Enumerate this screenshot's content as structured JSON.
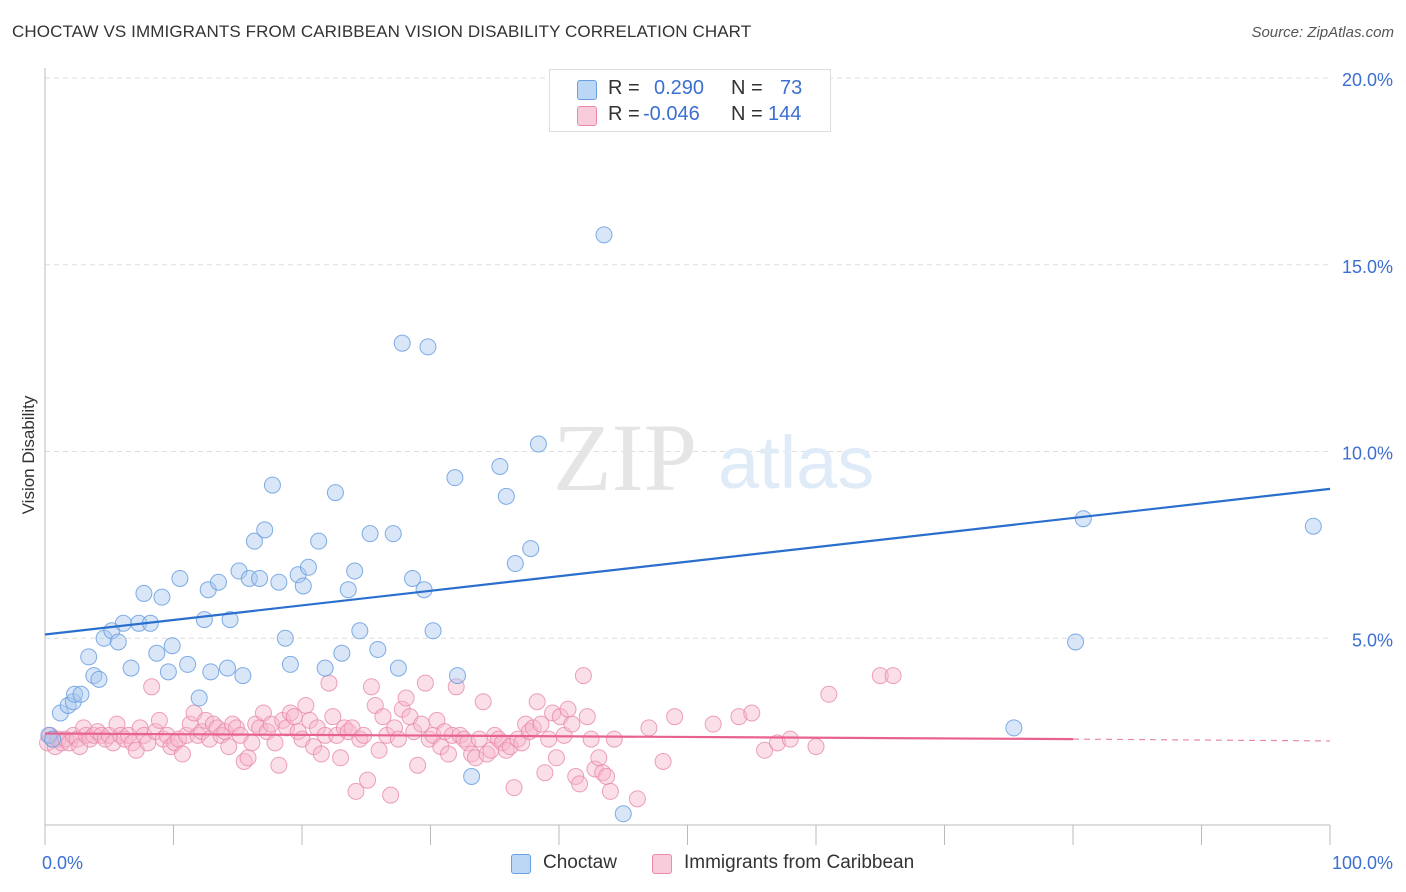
{
  "title": "CHOCTAW VS IMMIGRANTS FROM CARIBBEAN VISION DISABILITY CORRELATION CHART",
  "source": "Source: ZipAtlas.com",
  "watermark": {
    "zip": "ZIP",
    "atlas": "atlas"
  },
  "legend": {
    "r_label": "R =",
    "n_label": "N =",
    "rows": [
      {
        "name": "Choctaw",
        "r": "0.290",
        "n": "73"
      },
      {
        "name": "Immigrants from Caribbean",
        "r": "-0.046",
        "n": "144"
      }
    ]
  },
  "colors": {
    "blue_fill": "#a9c8f0",
    "blue_stroke": "#6a9fe0",
    "blue_line": "#2b6fce",
    "pink_fill": "#f6b8cd",
    "pink_stroke": "#e98aab",
    "pink_line": "#e8628f",
    "tick_label": "#3b6fd1",
    "grid": "#dddddd"
  },
  "chart_data": {
    "type": "scatter",
    "title": "CHOCTAW VS IMMIGRANTS FROM CARIBBEAN VISION DISABILITY CORRELATION CHART",
    "xlabel": "",
    "ylabel": "Vision Disability",
    "xlim": [
      0,
      100
    ],
    "ylim": [
      0,
      20
    ],
    "x_tick_labels": [
      "0.0%",
      "100.0%"
    ],
    "y_ticks": [
      5,
      10,
      15,
      20
    ],
    "y_tick_labels": [
      "5.0%",
      "10.0%",
      "15.0%",
      "20.0%"
    ],
    "series": [
      {
        "name": "Choctaw",
        "r": 0.29,
        "n": 73,
        "trend": {
          "x": [
            0,
            100
          ],
          "y": [
            5.1,
            9.0
          ]
        },
        "points": [
          [
            0.3,
            2.4
          ],
          [
            0.6,
            2.3
          ],
          [
            1.2,
            3.0
          ],
          [
            1.8,
            3.2
          ],
          [
            2.2,
            3.3
          ],
          [
            2.3,
            3.5
          ],
          [
            2.8,
            3.5
          ],
          [
            3.4,
            4.5
          ],
          [
            3.8,
            4.0
          ],
          [
            4.2,
            3.9
          ],
          [
            4.6,
            5.0
          ],
          [
            5.2,
            5.2
          ],
          [
            5.7,
            4.9
          ],
          [
            6.1,
            5.4
          ],
          [
            6.7,
            4.2
          ],
          [
            7.3,
            5.4
          ],
          [
            7.7,
            6.2
          ],
          [
            8.2,
            5.4
          ],
          [
            8.7,
            4.6
          ],
          [
            9.1,
            6.1
          ],
          [
            9.6,
            4.1
          ],
          [
            9.9,
            4.8
          ],
          [
            10.5,
            6.6
          ],
          [
            11.1,
            4.3
          ],
          [
            12.0,
            3.4
          ],
          [
            12.4,
            5.5
          ],
          [
            12.7,
            6.3
          ],
          [
            12.9,
            4.1
          ],
          [
            13.5,
            6.5
          ],
          [
            14.2,
            4.2
          ],
          [
            14.4,
            5.5
          ],
          [
            15.1,
            6.8
          ],
          [
            15.4,
            4.0
          ],
          [
            15.9,
            6.6
          ],
          [
            16.3,
            7.6
          ],
          [
            16.7,
            6.6
          ],
          [
            17.1,
            7.9
          ],
          [
            17.7,
            9.1
          ],
          [
            18.2,
            6.5
          ],
          [
            18.7,
            5.0
          ],
          [
            19.1,
            4.3
          ],
          [
            19.7,
            6.7
          ],
          [
            20.1,
            6.4
          ],
          [
            20.5,
            6.9
          ],
          [
            21.3,
            7.6
          ],
          [
            21.8,
            4.2
          ],
          [
            22.6,
            8.9
          ],
          [
            23.1,
            4.6
          ],
          [
            23.6,
            6.3
          ],
          [
            24.1,
            6.8
          ],
          [
            24.5,
            5.2
          ],
          [
            25.3,
            7.8
          ],
          [
            25.9,
            4.7
          ],
          [
            27.1,
            7.8
          ],
          [
            27.5,
            4.2
          ],
          [
            27.8,
            12.9
          ],
          [
            28.6,
            6.6
          ],
          [
            29.5,
            6.3
          ],
          [
            29.8,
            12.8
          ],
          [
            30.2,
            5.2
          ],
          [
            31.9,
            9.3
          ],
          [
            32.1,
            4.0
          ],
          [
            33.2,
            1.3
          ],
          [
            35.4,
            9.6
          ],
          [
            35.9,
            8.8
          ],
          [
            36.6,
            7.0
          ],
          [
            37.8,
            7.4
          ],
          [
            38.4,
            10.2
          ],
          [
            43.5,
            15.8
          ],
          [
            45.0,
            0.3
          ],
          [
            75.4,
            2.6
          ],
          [
            80.2,
            4.9
          ],
          [
            80.8,
            8.2
          ],
          [
            98.7,
            8.0
          ]
        ]
      },
      {
        "name": "Immigrants from Caribbean",
        "r": -0.046,
        "n": 144,
        "trend": {
          "x": [
            0,
            80
          ],
          "y": [
            2.45,
            2.3
          ]
        },
        "trend_dashed": {
          "x": [
            80,
            100
          ],
          "y": [
            2.3,
            2.25
          ]
        },
        "points": [
          [
            0.2,
            2.2
          ],
          [
            0.4,
            2.4
          ],
          [
            0.6,
            2.3
          ],
          [
            0.8,
            2.1
          ],
          [
            1.0,
            2.3
          ],
          [
            1.3,
            2.2
          ],
          [
            1.6,
            2.3
          ],
          [
            1.9,
            2.2
          ],
          [
            2.2,
            2.4
          ],
          [
            2.5,
            2.3
          ],
          [
            2.7,
            2.1
          ],
          [
            3.0,
            2.6
          ],
          [
            3.2,
            2.4
          ],
          [
            3.5,
            2.3
          ],
          [
            3.8,
            2.4
          ],
          [
            4.1,
            2.5
          ],
          [
            4.4,
            2.4
          ],
          [
            4.7,
            2.3
          ],
          [
            5.0,
            2.4
          ],
          [
            5.3,
            2.2
          ],
          [
            5.6,
            2.7
          ],
          [
            5.9,
            2.4
          ],
          [
            6.2,
            2.3
          ],
          [
            6.5,
            2.4
          ],
          [
            6.8,
            2.2
          ],
          [
            7.1,
            2.0
          ],
          [
            7.4,
            2.6
          ],
          [
            7.7,
            2.4
          ],
          [
            8.0,
            2.2
          ],
          [
            8.3,
            3.7
          ],
          [
            8.6,
            2.5
          ],
          [
            8.9,
            2.8
          ],
          [
            9.2,
            2.3
          ],
          [
            9.5,
            2.4
          ],
          [
            9.8,
            2.1
          ],
          [
            10.1,
            2.2
          ],
          [
            10.4,
            2.3
          ],
          [
            10.7,
            1.9
          ],
          [
            11.0,
            2.4
          ],
          [
            11.3,
            2.7
          ],
          [
            11.6,
            3.0
          ],
          [
            11.9,
            2.4
          ],
          [
            12.2,
            2.5
          ],
          [
            12.5,
            2.8
          ],
          [
            12.8,
            2.3
          ],
          [
            13.1,
            2.7
          ],
          [
            13.4,
            2.6
          ],
          [
            13.7,
            2.4
          ],
          [
            14.0,
            2.5
          ],
          [
            14.3,
            2.1
          ],
          [
            14.6,
            2.7
          ],
          [
            14.9,
            2.6
          ],
          [
            15.2,
            2.4
          ],
          [
            15.5,
            1.7
          ],
          [
            15.8,
            1.8
          ],
          [
            16.1,
            2.2
          ],
          [
            16.4,
            2.7
          ],
          [
            16.7,
            2.6
          ],
          [
            17.0,
            3.0
          ],
          [
            17.3,
            2.5
          ],
          [
            17.6,
            2.7
          ],
          [
            17.9,
            2.2
          ],
          [
            18.2,
            1.6
          ],
          [
            18.5,
            2.8
          ],
          [
            18.8,
            2.6
          ],
          [
            19.1,
            3.0
          ],
          [
            19.4,
            2.9
          ],
          [
            19.7,
            2.5
          ],
          [
            20.0,
            2.3
          ],
          [
            20.3,
            3.2
          ],
          [
            20.6,
            2.8
          ],
          [
            20.9,
            2.1
          ],
          [
            21.2,
            2.6
          ],
          [
            21.5,
            1.9
          ],
          [
            21.8,
            2.4
          ],
          [
            22.1,
            3.8
          ],
          [
            22.4,
            2.9
          ],
          [
            22.7,
            2.4
          ],
          [
            23.0,
            1.8
          ],
          [
            23.3,
            2.6
          ],
          [
            23.6,
            2.5
          ],
          [
            23.9,
            2.6
          ],
          [
            24.2,
            0.9
          ],
          [
            24.5,
            2.3
          ],
          [
            24.8,
            2.4
          ],
          [
            25.1,
            1.2
          ],
          [
            25.4,
            3.7
          ],
          [
            25.7,
            3.2
          ],
          [
            26.0,
            2.0
          ],
          [
            26.3,
            2.9
          ],
          [
            26.6,
            2.4
          ],
          [
            26.9,
            0.8
          ],
          [
            27.2,
            2.6
          ],
          [
            27.5,
            2.3
          ],
          [
            27.8,
            3.1
          ],
          [
            28.1,
            3.4
          ],
          [
            28.4,
            2.9
          ],
          [
            28.7,
            2.5
          ],
          [
            29.0,
            1.6
          ],
          [
            29.3,
            2.7
          ],
          [
            29.6,
            3.8
          ],
          [
            29.9,
            2.3
          ],
          [
            30.2,
            2.4
          ],
          [
            30.5,
            2.8
          ],
          [
            30.8,
            2.1
          ],
          [
            31.1,
            2.5
          ],
          [
            31.4,
            1.9
          ],
          [
            31.7,
            2.4
          ],
          [
            32.0,
            3.7
          ],
          [
            32.3,
            2.4
          ],
          [
            32.6,
            2.3
          ],
          [
            32.9,
            2.2
          ],
          [
            33.2,
            1.9
          ],
          [
            33.5,
            1.8
          ],
          [
            33.8,
            2.3
          ],
          [
            34.1,
            3.3
          ],
          [
            34.4,
            1.9
          ],
          [
            34.7,
            2.0
          ],
          [
            35.0,
            2.4
          ],
          [
            35.3,
            2.3
          ],
          [
            35.6,
            2.2
          ],
          [
            35.9,
            2.0
          ],
          [
            36.2,
            2.1
          ],
          [
            36.5,
            1.0
          ],
          [
            36.8,
            2.3
          ],
          [
            37.1,
            2.2
          ],
          [
            37.4,
            2.7
          ],
          [
            37.7,
            2.5
          ],
          [
            38.0,
            2.6
          ],
          [
            38.3,
            3.3
          ],
          [
            38.6,
            2.7
          ],
          [
            38.9,
            1.4
          ],
          [
            39.2,
            2.3
          ],
          [
            39.5,
            3.0
          ],
          [
            39.8,
            1.8
          ],
          [
            40.1,
            2.9
          ],
          [
            40.4,
            2.4
          ],
          [
            40.7,
            3.1
          ],
          [
            41.0,
            2.7
          ],
          [
            41.3,
            1.3
          ],
          [
            41.6,
            1.1
          ],
          [
            41.9,
            4.0
          ],
          [
            42.2,
            2.9
          ],
          [
            42.5,
            2.3
          ],
          [
            42.8,
            1.5
          ],
          [
            43.1,
            1.8
          ],
          [
            43.4,
            1.4
          ],
          [
            43.7,
            1.3
          ],
          [
            44.0,
            0.9
          ],
          [
            44.3,
            2.3
          ],
          [
            46.1,
            0.7
          ],
          [
            47.0,
            2.6
          ],
          [
            48.1,
            1.7
          ],
          [
            49.0,
            2.9
          ],
          [
            52.0,
            2.7
          ],
          [
            54.0,
            2.9
          ],
          [
            55.0,
            3.0
          ],
          [
            56.0,
            2.0
          ],
          [
            57.0,
            2.2
          ],
          [
            58.0,
            2.3
          ],
          [
            60.0,
            2.1
          ],
          [
            61.0,
            3.5
          ],
          [
            65.0,
            4.0
          ],
          [
            66.0,
            4.0
          ]
        ]
      }
    ]
  }
}
